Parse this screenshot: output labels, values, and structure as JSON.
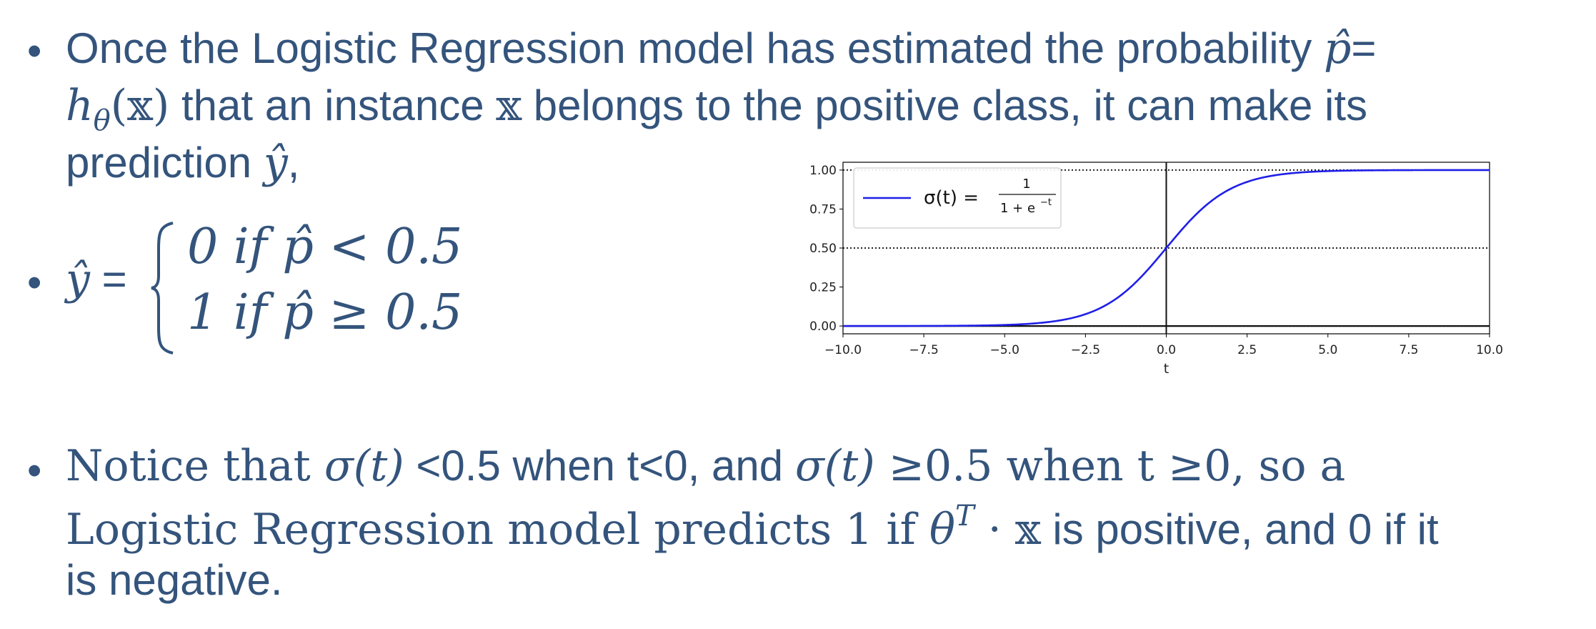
{
  "slide": {
    "bullet1": {
      "line1_text": "Once the Logistic Regression model has estimated the probability ",
      "line1_phat": "p̂",
      "line1_eq": "=",
      "line2_h": "h",
      "line2_theta": "θ",
      "line2_x": "(𝕩)",
      "line2_text": " that an instance ",
      "line2_xx": "𝕩",
      "line2_text2": " belongs to the positive class, it can make its",
      "line3_text": "prediction ",
      "line3_yhat": "ŷ",
      "line3_comma": ","
    },
    "bullet2": {
      "yhat": "ŷ",
      "eq": " =",
      "case1": "0 if p̂ < 0.5",
      "case2": "1 if p̂ ≥ 0.5"
    },
    "bullet3": {
      "l1_a": "Notice that ",
      "l1_sigma1": "σ(t)",
      "l1_b": " <0.5 when t<0, and ",
      "l1_sigma2": "σ(t)",
      "l1_c": " ≥0.5 when t ≥0, so a",
      "l2_a": "Logistic Regression model predicts 1 if ",
      "l2_theta": "θ",
      "l2_T": "T",
      "l2_dot": " · ",
      "l2_xx": "𝕩",
      "l2_b": " is positive, and 0 if it",
      "l3": "is negative."
    },
    "bullet_char": "•",
    "text_color": "#34547c"
  },
  "chart_data": {
    "type": "line",
    "xlabel": "t",
    "ylabel": "",
    "xlim": [
      -10.0,
      10.0
    ],
    "ylim": [
      -0.05,
      1.05
    ],
    "x_ticks": [
      "−10.0",
      "−7.5",
      "−5.0",
      "−2.5",
      "0.0",
      "2.5",
      "5.0",
      "7.5",
      "10.0"
    ],
    "y_ticks": [
      "0.00",
      "0.25",
      "0.50",
      "0.75",
      "1.00"
    ],
    "legend": {
      "placement": "top-left",
      "label_lhs": "σ(t) =",
      "label_num": "1",
      "label_den": "1 + e",
      "label_exp": "−t"
    },
    "series": [
      {
        "name": "σ(t) = 1/(1+e^−t)",
        "color": "#1f1fe8",
        "x": [
          -10,
          -9,
          -8,
          -7,
          -6,
          -5,
          -4,
          -3,
          -2,
          -1,
          0,
          1,
          2,
          3,
          4,
          5,
          6,
          7,
          8,
          9,
          10
        ],
        "y": [
          0.0,
          0.0001,
          0.0003,
          0.0009,
          0.0025,
          0.0067,
          0.018,
          0.0474,
          0.1192,
          0.2689,
          0.5,
          0.7311,
          0.8808,
          0.9526,
          0.982,
          0.9933,
          0.9975,
          0.9991,
          0.9997,
          0.9999,
          1.0
        ]
      }
    ],
    "reference_lines": {
      "dotted_y": [
        0,
        0.5,
        1
      ],
      "solid_x": 0,
      "solid_y": 0
    },
    "grid": false
  }
}
